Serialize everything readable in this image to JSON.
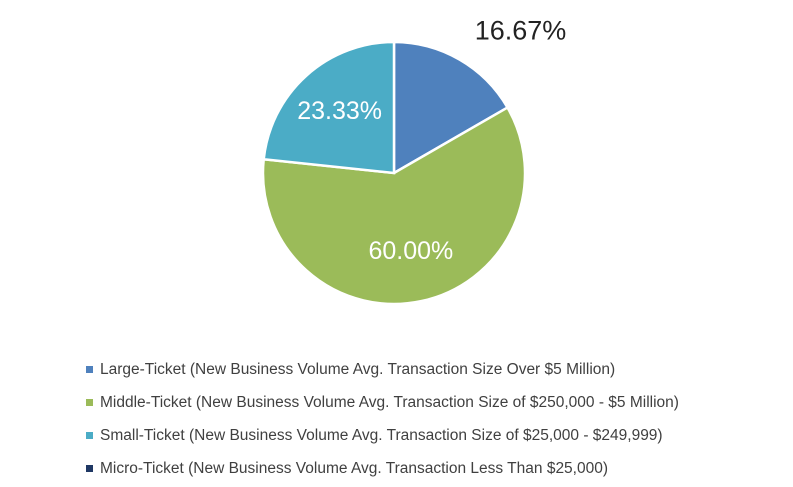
{
  "chart_data": {
    "type": "pie",
    "title": "",
    "slices": [
      {
        "label": "Large-Ticket (New Business Volume Avg. Transaction Size Over $5 Million)",
        "value": 16.67,
        "value_label": "16.67%",
        "color": "#4F81BD"
      },
      {
        "label": "Middle-Ticket (New Business Volume Avg. Transaction Size of $250,000 - $5 Million)",
        "value": 60.0,
        "value_label": "60.00%",
        "color": "#9BBB59"
      },
      {
        "label": "Small-Ticket (New Business Volume Avg. Transaction Size of $25,000 - $249,999)",
        "value": 23.33,
        "value_label": "23.33%",
        "color": "#4BACC6"
      },
      {
        "label": "Micro-Ticket (New Business Volume Avg. Transaction Less Than $25,000)",
        "value": 0,
        "value_label": "",
        "color": "#1F3864"
      }
    ],
    "start_angle": "12 o'clock",
    "direction": "clockwise",
    "legend": "bottom"
  }
}
